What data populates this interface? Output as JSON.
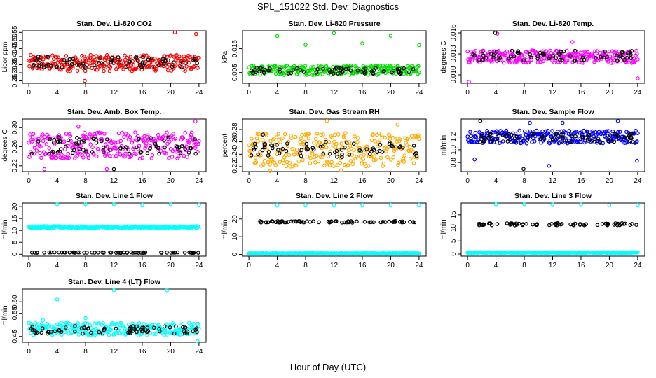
{
  "page": {
    "title": "SPL_151022  Std. Dev. Diagnostics",
    "xlabel": "Hour of Day (UTC)"
  },
  "chart_data": [
    {
      "type": "scatter",
      "title": "Stan. Dev. Li-820 CO2",
      "ylabel": "Licor ppm",
      "xticks": [
        0,
        4,
        8,
        12,
        16,
        20,
        24
      ],
      "xlim": [
        -0.9,
        25
      ],
      "yticks": [
        "0.25",
        "0.30",
        "0.35",
        "0.40",
        "0.45",
        "0.50",
        "0.55"
      ],
      "ylim": [
        0.235,
        0.56
      ],
      "series": [
        {
          "color": "#ff0000",
          "band": [
            0.31,
            0.41
          ],
          "outliers": [
            [
              20.6,
              0.55
            ],
            [
              23.6,
              0.54
            ],
            [
              7.9,
              0.25
            ]
          ]
        },
        {
          "color": "#000000",
          "band": [
            0.33,
            0.4
          ],
          "outliers": []
        }
      ]
    },
    {
      "type": "scatter",
      "title": "Stan. Dev. Li-820 Pressure",
      "ylabel": "kPa",
      "xticks": [
        0,
        4,
        8,
        12,
        16,
        20,
        24
      ],
      "xlim": [
        -0.9,
        25
      ],
      "yticks": [
        "0.005",
        "0.015"
      ],
      "ylim": [
        0.0005,
        0.0225
      ],
      "series": [
        {
          "color": "#00dd00",
          "band": [
            0.004,
            0.008
          ],
          "outliers": [
            [
              4.0,
              0.0203
            ],
            [
              8.0,
              0.0166
            ],
            [
              12.0,
              0.0215
            ],
            [
              16.0,
              0.0172
            ],
            [
              20.0,
              0.0204
            ],
            [
              24.0,
              0.0165
            ]
          ]
        },
        {
          "color": "#000000",
          "band": [
            0.0045,
            0.0072
          ],
          "outliers": []
        }
      ]
    },
    {
      "type": "scatter",
      "title": "Stan. Dev. Li-820 Temp.",
      "ylabel": "degrees C",
      "xticks": [
        0,
        4,
        8,
        12,
        16,
        20,
        24
      ],
      "xlim": [
        -0.9,
        25
      ],
      "yticks": [
        "0.010",
        "0.013",
        "0.016"
      ],
      "ylim": [
        0.0088,
        0.0163
      ],
      "series": [
        {
          "color": "#ff00ff",
          "band": [
            0.0117,
            0.0135
          ],
          "outliers": [
            [
              0.2,
              0.009
            ],
            [
              4.2,
              0.0159
            ],
            [
              14.8,
              0.0147
            ],
            [
              24.0,
              0.0095
            ]
          ]
        },
        {
          "color": "#000000",
          "band": [
            0.012,
            0.0135
          ],
          "outliers": [
            [
              3.9,
              0.016
            ]
          ]
        }
      ]
    },
    {
      "type": "scatter",
      "title": "Stan. Dev. Amb. Box Temp.",
      "ylabel": "degrees C",
      "xticks": [
        0,
        4,
        8,
        12,
        16,
        20,
        24
      ],
      "xlim": [
        -0.9,
        25
      ],
      "yticks": [
        "0.22",
        "0.26",
        "0.30"
      ],
      "ylim": [
        0.208,
        0.318
      ],
      "series": [
        {
          "color": "#ff00ff",
          "band": [
            0.235,
            0.29
          ],
          "outliers": [
            [
              2.2,
              0.213
            ],
            [
              11.0,
              0.213
            ],
            [
              23.5,
              0.313
            ],
            [
              7.0,
              0.302
            ]
          ]
        },
        {
          "color": "#000000",
          "band": [
            0.245,
            0.28
          ],
          "outliers": [
            [
              12.0,
              0.213
            ]
          ]
        }
      ]
    },
    {
      "type": "scatter",
      "title": "Stan. Dev. Gas Stream RH",
      "ylabel": "percent",
      "xticks": [
        0,
        4,
        8,
        12,
        16,
        20,
        24
      ],
      "xlim": [
        -0.9,
        25
      ],
      "yticks": [
        "0.22",
        "0.24",
        "0.26",
        "0.28"
      ],
      "ylim": [
        0.212,
        0.297
      ],
      "series": [
        {
          "color": "#ffaa00",
          "band": [
            0.22,
            0.275
          ],
          "outliers": [
            [
              11.0,
              0.294
            ],
            [
              21.0,
              0.288
            ],
            [
              3.0,
              0.213
            ],
            [
              13.0,
              0.214
            ]
          ]
        },
        {
          "color": "#000000",
          "band": [
            0.235,
            0.26
          ],
          "outliers": [
            [
              2.0,
              0.272
            ]
          ]
        }
      ]
    },
    {
      "type": "scatter",
      "title": "Stan. Dev. Sample Flow",
      "ylabel": "ml/min",
      "xticks": [
        0,
        4,
        8,
        12,
        16,
        20,
        24
      ],
      "xlim": [
        -0.9,
        25
      ],
      "yticks": [
        "0.8",
        "1.0",
        "1.2"
      ],
      "ylim": [
        0.66,
        1.48
      ],
      "series": [
        {
          "color": "#0000ff",
          "band": [
            1.1,
            1.3
          ],
          "outliers": [
            [
              1.0,
              0.85
            ],
            [
              11.5,
              0.75
            ],
            [
              21.2,
              1.45
            ],
            [
              13.4,
              1.42
            ],
            [
              23.9,
              0.83
            ],
            [
              8.8,
              1.42
            ]
          ]
        },
        {
          "color": "#000000",
          "band": [
            1.12,
            1.25
          ],
          "outliers": [
            [
              7.9,
              0.7
            ],
            [
              1.8,
              1.45
            ]
          ]
        }
      ]
    },
    {
      "type": "scatter",
      "title": "Stan. Dev. Line 1 Flow",
      "ylabel": "ml/min",
      "xticks": [
        0,
        4,
        8,
        12,
        16,
        20,
        24
      ],
      "xlim": [
        -0.9,
        25
      ],
      "yticks": [
        "0",
        "5",
        "10",
        "15",
        "20"
      ],
      "ylim": [
        -0.8,
        21.5
      ],
      "series": [
        {
          "color": "#00ffff",
          "band": [
            10.8,
            11.8
          ],
          "outliers": [
            [
              4.0,
              21.0
            ],
            [
              8.0,
              21.0
            ],
            [
              12.0,
              21.0
            ],
            [
              16.0,
              20.8
            ],
            [
              20.0,
              21.0
            ],
            [
              24.0,
              20.8
            ]
          ]
        },
        {
          "color": "#000000",
          "band": [
            0.6,
            0.8
          ],
          "outliers": []
        }
      ]
    },
    {
      "type": "scatter",
      "title": "Stan. Dev. Line 2 Flow",
      "ylabel": "ml/min",
      "xticks": [
        0,
        4,
        8,
        12,
        16,
        20,
        24
      ],
      "xlim": [
        -0.9,
        25
      ],
      "yticks": [
        "0",
        "10",
        "20"
      ],
      "ylim": [
        -1.0,
        29.0
      ],
      "series": [
        {
          "color": "#00ffff",
          "band": [
            0.4,
            0.7
          ],
          "outliers": [
            [
              4.0,
              28.0
            ],
            [
              8.0,
              28.0
            ],
            [
              12.0,
              28.0
            ],
            [
              16.0,
              28.0
            ],
            [
              20.0,
              28.0
            ],
            [
              24.0,
              28.0
            ]
          ]
        },
        {
          "color": "#000000",
          "band": [
            18.0,
            18.8
          ],
          "outliers": []
        }
      ]
    },
    {
      "type": "scatter",
      "title": "Stan. Dev. Line 3 Flow",
      "ylabel": "ml/min",
      "xticks": [
        0,
        4,
        8,
        12,
        16,
        20,
        24
      ],
      "xlim": [
        -0.9,
        25
      ],
      "yticks": [
        "0",
        "5",
        "10",
        "15"
      ],
      "ylim": [
        -0.8,
        19.5
      ],
      "series": [
        {
          "color": "#00ffff",
          "band": [
            0.4,
            0.7
          ],
          "outliers": [
            [
              4.0,
              19.0
            ],
            [
              8.0,
              19.0
            ],
            [
              12.0,
              19.0
            ],
            [
              16.0,
              19.0
            ],
            [
              20.0,
              18.7
            ],
            [
              24.0,
              18.8
            ]
          ]
        },
        {
          "color": "#000000",
          "band": [
            11.0,
            11.8
          ],
          "outliers": []
        }
      ]
    },
    {
      "type": "scatter",
      "title": "Stan. Dev. Line 4 (LT) Flow",
      "ylabel": "ml/min",
      "xticks": [
        0,
        4,
        8,
        12,
        16,
        20,
        24
      ],
      "xlim": [
        -0.9,
        25
      ],
      "yticks": [
        "0.45",
        "0.55",
        "0.60"
      ],
      "ylim": [
        0.425,
        0.655
      ],
      "series": [
        {
          "color": "#00ffff",
          "band": [
            0.455,
            0.51
          ],
          "outliers": [
            [
              4.0,
              0.61
            ],
            [
              12.0,
              0.65
            ],
            [
              19.5,
              0.65
            ],
            [
              2.0,
              0.52
            ],
            [
              8.0,
              0.53
            ],
            [
              23.8,
              0.43
            ]
          ]
        },
        {
          "color": "#000000",
          "band": [
            0.462,
            0.495
          ],
          "outliers": []
        }
      ]
    }
  ]
}
